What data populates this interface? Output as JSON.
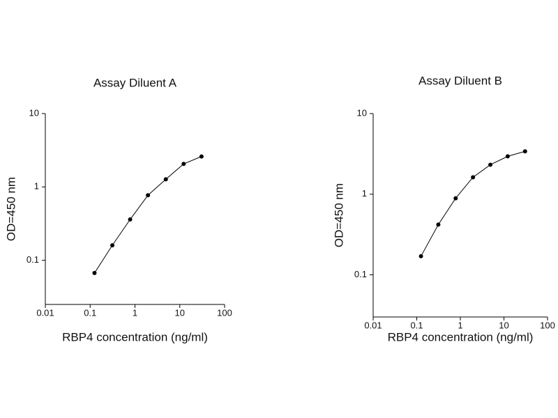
{
  "chart_data": [
    {
      "type": "line",
      "title": "Assay Diluent A",
      "xlabel": "RBP4 concentration (ng/ml)",
      "ylabel": "OD=450 nm",
      "xlog": true,
      "ylog": true,
      "color": "#000000",
      "x": [
        0.125,
        0.3125,
        0.78,
        1.95,
        4.88,
        12.2,
        30.5
      ],
      "values": [
        0.067,
        0.16,
        0.36,
        0.77,
        1.27,
        2.06,
        2.6
      ],
      "xlim": [
        0.01,
        100
      ],
      "xticks": [
        0.01,
        0.1,
        1,
        10,
        100
      ],
      "ylim": [
        0.025,
        10
      ],
      "yticks": [
        0.1,
        1,
        10
      ]
    },
    {
      "type": "line",
      "title": "Assay Diluent B",
      "xlabel": "RBP4 concentration (ng/ml)",
      "ylabel": "OD=450 nm",
      "xlog": true,
      "ylog": true,
      "color": "#000000",
      "x": [
        0.125,
        0.3125,
        0.78,
        1.95,
        4.88,
        12.2,
        30.5
      ],
      "values": [
        0.17,
        0.42,
        0.89,
        1.62,
        2.32,
        2.95,
        3.4
      ],
      "xlim": [
        0.01,
        100
      ],
      "xticks": [
        0.01,
        0.1,
        1,
        10,
        100
      ],
      "ylim": [
        0.03,
        10
      ],
      "yticks": [
        0.1,
        1,
        10
      ]
    }
  ]
}
